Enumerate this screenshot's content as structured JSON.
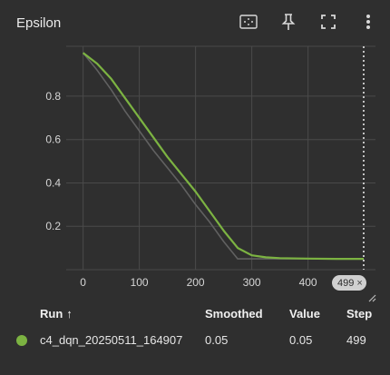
{
  "card": {
    "title": "Epsilon"
  },
  "toolbar": {
    "icons": [
      "fit-domain-icon",
      "pin-icon",
      "fullscreen-icon",
      "more-vert-icon"
    ]
  },
  "chart_data": {
    "type": "line",
    "title": "Epsilon",
    "xlabel": "",
    "ylabel": "",
    "xlim": [
      -30,
      520
    ],
    "ylim": [
      0,
      1.03
    ],
    "x_ticks": [
      0,
      100,
      200,
      300,
      400
    ],
    "y_ticks": [
      0.2,
      0.4,
      0.6,
      0.8
    ],
    "grid": true,
    "series": [
      {
        "name": "c4_dqn_20250511_164907",
        "role": "smoothed",
        "color": "#7cb342",
        "x": [
          0,
          25,
          50,
          75,
          100,
          125,
          150,
          175,
          200,
          225,
          250,
          275,
          300,
          325,
          350,
          400,
          450,
          499
        ],
        "y": [
          1.0,
          0.95,
          0.88,
          0.79,
          0.7,
          0.61,
          0.52,
          0.44,
          0.36,
          0.27,
          0.18,
          0.1,
          0.066,
          0.057,
          0.053,
          0.051,
          0.05,
          0.05
        ]
      },
      {
        "name": "c4_dqn_20250511_164907",
        "role": "raw",
        "color": "#616161",
        "x": [
          0,
          25,
          50,
          75,
          100,
          125,
          150,
          175,
          200,
          225,
          250,
          275,
          300,
          325,
          350,
          400,
          450,
          499
        ],
        "y": [
          1.0,
          0.92,
          0.83,
          0.73,
          0.64,
          0.55,
          0.47,
          0.39,
          0.3,
          0.22,
          0.13,
          0.05,
          0.05,
          0.05,
          0.05,
          0.05,
          0.05,
          0.05
        ]
      }
    ],
    "hover_step": 499
  },
  "hover": {
    "step_label": "499",
    "close_glyph": "×"
  },
  "table": {
    "headers": {
      "run": "Run",
      "sort_arrow": "↑",
      "smoothed": "Smoothed",
      "value": "Value",
      "step": "Step"
    },
    "rows": [
      {
        "color": "#7cb342",
        "run": "c4_dqn_20250511_164907",
        "smoothed": "0.05",
        "value": "0.05",
        "step": "499"
      }
    ]
  }
}
